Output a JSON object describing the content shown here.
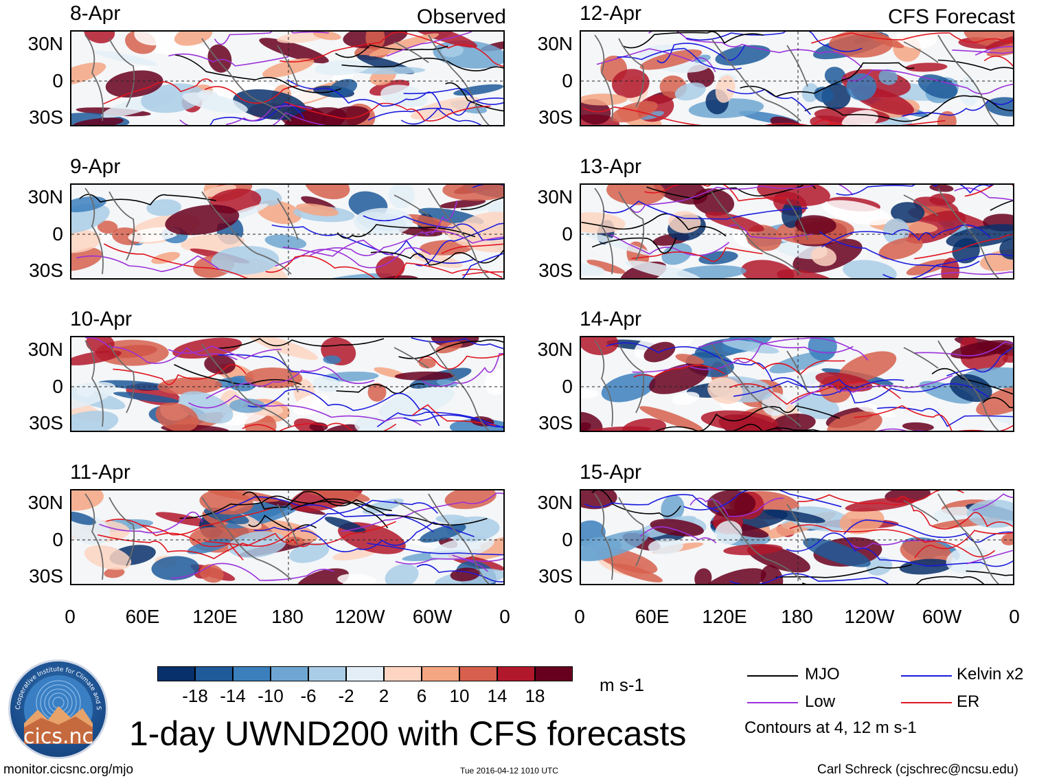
{
  "title": "1-day UWND200 with CFS forecasts",
  "left_header": "Observed",
  "right_header": "CFS Forecast",
  "left_panels": [
    {
      "date": "8-Apr"
    },
    {
      "date": "9-Apr"
    },
    {
      "date": "10-Apr"
    },
    {
      "date": "11-Apr"
    }
  ],
  "right_panels": [
    {
      "date": "12-Apr"
    },
    {
      "date": "13-Apr"
    },
    {
      "date": "14-Apr"
    },
    {
      "date": "15-Apr"
    }
  ],
  "lat_labels": [
    "30N",
    "0",
    "30S"
  ],
  "lon_labels": [
    "0",
    "60E",
    "120E",
    "180",
    "120W",
    "60W",
    "0"
  ],
  "colorbar": {
    "labels": [
      "-18",
      "-14",
      "-10",
      "-6",
      "-2",
      "2",
      "6",
      "10",
      "14",
      "18"
    ],
    "colors": [
      "#08306b",
      "#1f5a9a",
      "#3b7fbd",
      "#6ea6d1",
      "#a9cde6",
      "#e3eef7",
      "#ffffff",
      "#fdd5c2",
      "#f4a582",
      "#d6604d",
      "#b2182b",
      "#67001f"
    ],
    "units": "m s-1"
  },
  "legend": {
    "mjo": {
      "label": "MJO",
      "color": "#000000"
    },
    "kelvin": {
      "label": "Kelvin x2",
      "color": "#1a1adc"
    },
    "low": {
      "label": "Low",
      "color": "#9b30d9"
    },
    "er": {
      "label": "ER",
      "color": "#e0141e"
    },
    "contours_note": "Contours at 4, 12 m s-1"
  },
  "logo_text": "cics.nc",
  "logo_ring_text": "Cooperative Institute for Climate and Satellites",
  "footer": {
    "url": "monitor.cicsnc.org/mjo",
    "timestamp": "Tue 2016-04-12 1010 UTC",
    "author": "Carl Schreck (cjschrec@ncsu.edu)"
  }
}
